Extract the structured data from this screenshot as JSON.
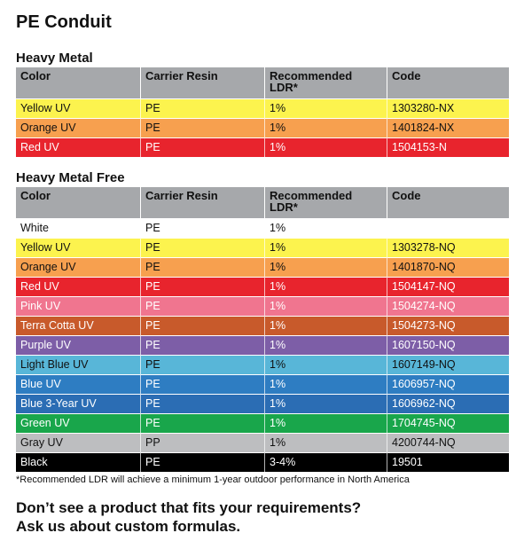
{
  "page_title": "PE Conduit",
  "columns": [
    "Color",
    "Carrier Resin",
    "Recommended LDR*",
    "Code"
  ],
  "sections": [
    {
      "title": "Heavy Metal",
      "rows": [
        {
          "color": "Yellow UV",
          "resin": "PE",
          "ldr": "1%",
          "code": "1303280-NX",
          "bg": "#fcf34e",
          "dark": false
        },
        {
          "color": "Orange UV",
          "resin": "PE",
          "ldr": "1%",
          "code": "1401824-NX",
          "bg": "#f7a04f",
          "dark": false
        },
        {
          "color": "Red UV",
          "resin": "PE",
          "ldr": "1%",
          "code": "1504153-N",
          "bg": "#e8242d",
          "dark": true
        }
      ]
    },
    {
      "title": "Heavy Metal Free",
      "rows": [
        {
          "color": "White",
          "resin": "PE",
          "ldr": "1%",
          "code": "",
          "bg": "#ffffff",
          "dark": false
        },
        {
          "color": "Yellow UV",
          "resin": "PE",
          "ldr": "1%",
          "code": "1303278-NQ",
          "bg": "#fcf34e",
          "dark": false
        },
        {
          "color": "Orange UV",
          "resin": "PE",
          "ldr": "1%",
          "code": "1401870-NQ",
          "bg": "#f7a04f",
          "dark": false
        },
        {
          "color": "Red UV",
          "resin": "PE",
          "ldr": "1%",
          "code": "1504147-NQ",
          "bg": "#e8242d",
          "dark": true
        },
        {
          "color": "Pink UV",
          "resin": "PE",
          "ldr": "1%",
          "code": "1504274-NQ",
          "bg": "#f0758f",
          "dark": true
        },
        {
          "color": "Terra Cotta UV",
          "resin": "PE",
          "ldr": "1%",
          "code": "1504273-NQ",
          "bg": "#c85a2b",
          "dark": true
        },
        {
          "color": "Purple UV",
          "resin": "PE",
          "ldr": "1%",
          "code": "1607150-NQ",
          "bg": "#7d5ea7",
          "dark": true
        },
        {
          "color": "Light Blue UV",
          "resin": "PE",
          "ldr": "1%",
          "code": "1607149-NQ",
          "bg": "#58b6d8",
          "dark": false
        },
        {
          "color": "Blue UV",
          "resin": "PE",
          "ldr": "1%",
          "code": "1606957-NQ",
          "bg": "#2e7dc2",
          "dark": true
        },
        {
          "color": "Blue 3-Year UV",
          "resin": "PE",
          "ldr": "1%",
          "code": "1606962-NQ",
          "bg": "#2b6db4",
          "dark": true
        },
        {
          "color": "Green UV",
          "resin": "PE",
          "ldr": "1%",
          "code": "1704745-NQ",
          "bg": "#19a64b",
          "dark": true
        },
        {
          "color": "Gray UV",
          "resin": "PP",
          "ldr": "1%",
          "code": "4200744-NQ",
          "bg": "#bdbec0",
          "dark": false
        },
        {
          "color": "Black",
          "resin": "PE",
          "ldr": "3-4%",
          "code": "19501",
          "bg": "#000000",
          "dark": true
        }
      ]
    }
  ],
  "footnote": "*Recommended LDR will achieve a minimum 1-year outdoor performance in North America",
  "cta_line1": "Don’t see a product that fits your requirements?",
  "cta_line2": "Ask us about custom formulas."
}
